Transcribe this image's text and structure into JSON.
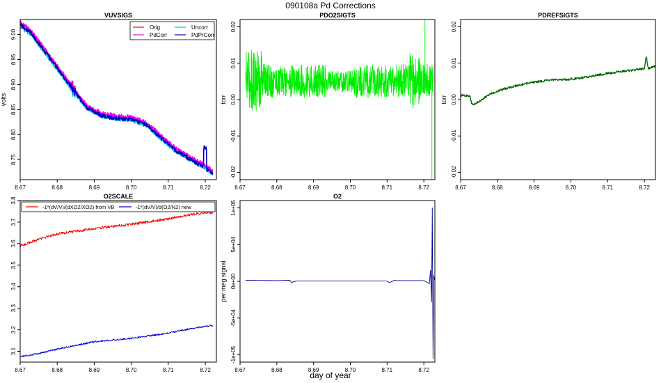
{
  "figure": {
    "title": "090108a   Pd Corrections",
    "xlabel": "day of year"
  },
  "chart_data": [
    {
      "id": "vuvsigs",
      "type": "line",
      "title": "VUVSIGS",
      "ylabel": "volts",
      "xlabel": "",
      "xlim": [
        8.67,
        8.723
      ],
      "ylim": [
        8.71,
        9.03
      ],
      "xticks": [
        8.67,
        8.68,
        8.69,
        8.7,
        8.71,
        8.72
      ],
      "xticklabels": [
        "8.67",
        "8.68",
        "8.69",
        "8.70",
        "8.71",
        "8.72"
      ],
      "yticks": [
        8.75,
        8.8,
        8.85,
        8.9,
        8.95,
        9.0
      ],
      "yticklabels": [
        "8.75",
        "8.80",
        "8.85",
        "8.90",
        "8.95",
        "9.00"
      ],
      "legend": [
        "Orig",
        "Uncorr",
        "PdCorr",
        "PdPrCorr"
      ],
      "legend_position": "top-right",
      "series": [
        {
          "name": "Orig",
          "color": "#ff0000",
          "noise": 0.004,
          "x": [
            8.67,
            8.673,
            8.676,
            8.68,
            8.684,
            8.688,
            8.692,
            8.696,
            8.7,
            8.704,
            8.708,
            8.712,
            8.716,
            8.72,
            8.722
          ],
          "y": [
            9.022,
            9.005,
            8.975,
            8.935,
            8.895,
            8.855,
            8.84,
            8.834,
            8.832,
            8.822,
            8.795,
            8.77,
            8.752,
            8.735,
            8.725
          ]
        },
        {
          "name": "Uncorr",
          "color": "#00cccc",
          "noise": 0.004,
          "x": [
            8.67,
            8.673,
            8.676,
            8.68,
            8.684,
            8.688,
            8.692,
            8.696,
            8.7,
            8.704,
            8.708,
            8.712,
            8.716,
            8.72,
            8.722
          ],
          "y": [
            9.015,
            9.0,
            8.97,
            8.93,
            8.89,
            8.852,
            8.837,
            8.831,
            8.829,
            8.819,
            8.792,
            8.767,
            8.749,
            8.732,
            8.722
          ]
        },
        {
          "name": "PdCorr",
          "color": "#ee00ee",
          "noise": 0.004,
          "x": [
            8.67,
            8.673,
            8.676,
            8.68,
            8.684,
            8.688,
            8.692,
            8.696,
            8.7,
            8.704,
            8.708,
            8.712,
            8.716,
            8.72,
            8.722
          ],
          "y": [
            9.024,
            9.007,
            8.977,
            8.937,
            8.897,
            8.858,
            8.843,
            8.837,
            8.835,
            8.825,
            8.798,
            8.773,
            8.755,
            8.738,
            8.728
          ]
        },
        {
          "name": "PdPrCorr",
          "color": "#0000cc",
          "noise": 0.004,
          "x": [
            8.67,
            8.673,
            8.676,
            8.68,
            8.684,
            8.688,
            8.692,
            8.696,
            8.7,
            8.704,
            8.708,
            8.712,
            8.716,
            8.72,
            8.722
          ],
          "y": [
            9.02,
            9.003,
            8.973,
            8.933,
            8.893,
            8.853,
            8.838,
            8.832,
            8.83,
            8.82,
            8.793,
            8.768,
            8.75,
            8.733,
            8.723
          ]
        }
      ]
    },
    {
      "id": "pdo2sigts",
      "type": "line",
      "title": "PDO2SIGTS",
      "ylabel": "torr",
      "xlabel": "",
      "xlim": [
        8.67,
        8.723
      ],
      "ylim": [
        -0.022,
        0.022
      ],
      "xticks": [
        8.67,
        8.68,
        8.69,
        8.7,
        8.71,
        8.72
      ],
      "xticklabels": [
        "8.67",
        "8.68",
        "8.69",
        "8.70",
        "8.71",
        "8.72"
      ],
      "yticks": [
        -0.02,
        -0.01,
        0.0,
        0.01,
        0.02
      ],
      "yticklabels": [
        "-0.02",
        "-0.01",
        "0.00",
        "0.01",
        "0.02"
      ],
      "series": [
        {
          "name": "PdO2",
          "color": "#00ee00",
          "noise": 0.0045,
          "x": [
            8.6715,
            8.68,
            8.69,
            8.7,
            8.71,
            8.72,
            8.7225
          ],
          "y": [
            0.0055,
            0.005,
            0.005,
            0.005,
            0.005,
            0.0055,
            0.005
          ]
        }
      ]
    },
    {
      "id": "pdrefsigts",
      "type": "line",
      "title": "PDREFSIGTS",
      "ylabel": "torr",
      "xlabel": "",
      "xlim": [
        8.67,
        8.723
      ],
      "ylim": [
        -0.022,
        0.022
      ],
      "xticks": [
        8.67,
        8.68,
        8.69,
        8.7,
        8.71,
        8.72
      ],
      "xticklabels": [
        "8.67",
        "8.68",
        "8.69",
        "8.70",
        "8.71",
        "8.72"
      ],
      "yticks": [
        -0.02,
        -0.01,
        0.0,
        0.01,
        0.02
      ],
      "yticklabels": [
        "-0.02",
        "-0.01",
        "0.00",
        "0.01",
        "0.02"
      ],
      "series": [
        {
          "name": "PdRef",
          "color": "#006600",
          "noise": 0.0003,
          "x": [
            8.67,
            8.6725,
            8.673,
            8.6735,
            8.675,
            8.678,
            8.682,
            8.686,
            8.69,
            8.694,
            8.698,
            8.702,
            8.706,
            8.71,
            8.714,
            8.718,
            8.72,
            8.7205,
            8.721,
            8.7232
          ],
          "y": [
            0.0012,
            0.001,
            -0.001,
            -0.0015,
            -0.0005,
            0.0015,
            0.003,
            0.004,
            0.0048,
            0.0053,
            0.0055,
            0.0058,
            0.0065,
            0.0072,
            0.0078,
            0.0082,
            0.0085,
            0.012,
            0.0085,
            0.0092
          ]
        }
      ]
    },
    {
      "id": "o2scale",
      "type": "line",
      "title": "O2SCALE",
      "ylabel": "",
      "xlabel": "",
      "xlim": [
        8.67,
        8.723
      ],
      "ylim": [
        3.05,
        3.8
      ],
      "xticks": [
        8.67,
        8.68,
        8.69,
        8.7,
        8.71,
        8.72
      ],
      "xticklabels": [
        "8.67",
        "8.68",
        "8.69",
        "8.70",
        "8.71",
        "8.72"
      ],
      "yticks": [
        3.1,
        3.2,
        3.3,
        3.4,
        3.5,
        3.6,
        3.7,
        3.8
      ],
      "yticklabels": [
        "3.1",
        "3.2",
        "3.3",
        "3.4",
        "3.5",
        "3.6",
        "3.7",
        "3.8"
      ],
      "legend": [
        "-1*(dV/V)/(dXO2/XO2) from VB",
        "-1*(dV/V)/d(O2/N2) new"
      ],
      "legend_position": "top",
      "series": [
        {
          "name": "-1*(dV/V)/(dXO2/XO2) from VB",
          "color": "#ee0000",
          "noise": 0.006,
          "x": [
            8.67,
            8.675,
            8.68,
            8.69,
            8.7,
            8.71,
            8.716,
            8.722
          ],
          "y": [
            3.59,
            3.62,
            3.645,
            3.67,
            3.69,
            3.715,
            3.735,
            3.745
          ]
        },
        {
          "name": "-1*(dV/V)/d(O2/N2) new",
          "color": "#0000cc",
          "noise": 0.004,
          "x": [
            8.67,
            8.675,
            8.68,
            8.69,
            8.7,
            8.71,
            8.716,
            8.722
          ],
          "y": [
            3.075,
            3.09,
            3.11,
            3.145,
            3.16,
            3.185,
            3.205,
            3.22
          ]
        }
      ]
    },
    {
      "id": "o2",
      "type": "line",
      "title": "O2",
      "ylabel": "per meg signal",
      "xlabel": "",
      "xlim": [
        8.67,
        8.723
      ],
      "ylim": [
        -110000,
        110000
      ],
      "xticks": [
        8.67,
        8.68,
        8.69,
        8.7,
        8.71,
        8.72
      ],
      "xticklabels": [
        "8.67",
        "8.68",
        "8.69",
        "8.70",
        "8.71",
        "8.72"
      ],
      "yticks": [
        -100000,
        -50000,
        0,
        50000,
        100000
      ],
      "yticklabels": [
        "-1e+05",
        "-5e+04",
        "0e+00",
        "5e+04",
        "1e+05"
      ],
      "series": [
        {
          "name": "O2",
          "color": "#000099",
          "noise": 0,
          "x": [
            8.6715,
            8.68,
            8.6835,
            8.684,
            8.6855,
            8.69,
            8.7,
            8.71,
            8.7105,
            8.711,
            8.712,
            8.7125,
            8.72,
            8.7215,
            8.7218,
            8.7221,
            8.7223,
            8.7225,
            8.7227,
            8.7229
          ],
          "y": [
            1500,
            1000,
            1500,
            -1500,
            500,
            500,
            500,
            500,
            -1500,
            -1000,
            1500,
            1000,
            1000,
            -3000,
            15000,
            -28000,
            100000,
            -105000,
            8000,
            2000
          ]
        }
      ]
    }
  ]
}
